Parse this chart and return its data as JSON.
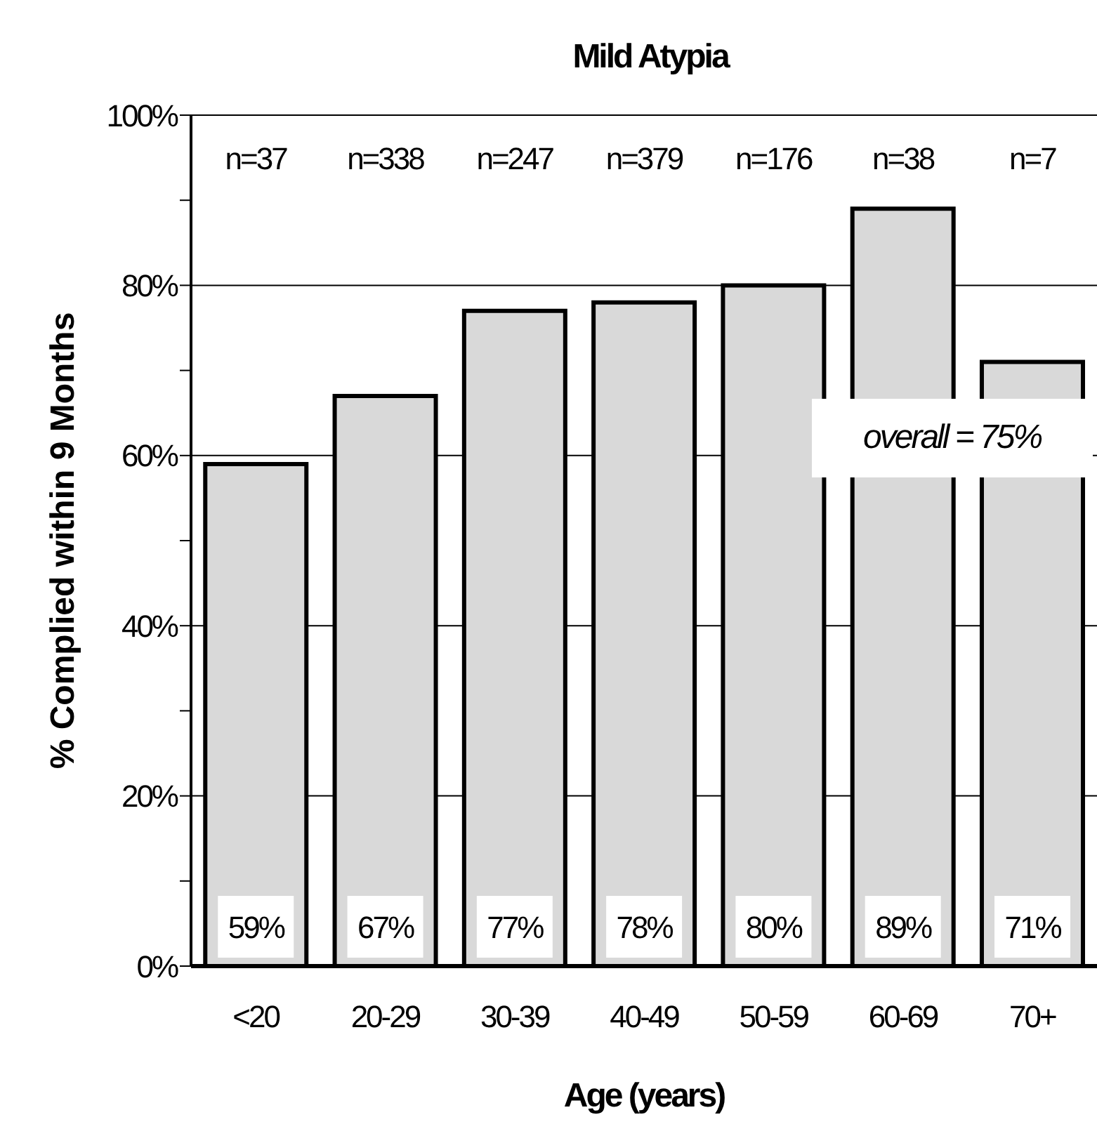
{
  "chart_data": {
    "type": "bar",
    "title": "Mild Atypia",
    "xlabel": "Age (years)",
    "ylabel": "% Complied within 9 Months",
    "categories": [
      "<20",
      "20-29",
      "30-39",
      "40-49",
      "50-59",
      "60-69",
      "70+"
    ],
    "values": [
      59,
      67,
      77,
      78,
      80,
      89,
      71
    ],
    "value_labels": [
      "59%",
      "67%",
      "77%",
      "78%",
      "80%",
      "89%",
      "71%"
    ],
    "color": "#d9d9d9",
    "ylim": [
      0,
      100
    ],
    "yticks": [
      {
        "value": 0,
        "label": "0%"
      },
      {
        "value": 10,
        "label": null
      },
      {
        "value": 20,
        "label": "20%"
      },
      {
        "value": 30,
        "label": null
      },
      {
        "value": 40,
        "label": "40%"
      },
      {
        "value": 50,
        "label": null
      },
      {
        "value": 60,
        "label": "60%"
      },
      {
        "value": 70,
        "label": null
      },
      {
        "value": 80,
        "label": "80%"
      },
      {
        "value": 90,
        "label": null
      },
      {
        "value": 100,
        "label": "100%"
      }
    ],
    "grid": "y",
    "annotations": [
      "n=37",
      "n=338",
      "n=247",
      "n=379",
      "n=176",
      "n=38",
      "n=7",
      "overall = 75%"
    ]
  }
}
